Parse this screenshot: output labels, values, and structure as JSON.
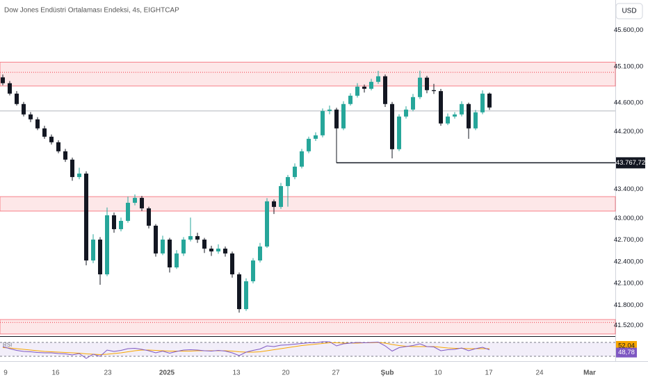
{
  "chart_data": {
    "type": "candlestick",
    "title": "Dow Jones Endüstri Ortalaması Endeksi, 4s, EIGHTCAP",
    "currency": "USD",
    "up_color": "#26a69a",
    "down_color": "#131722",
    "ylim": [
      41370,
      46020
    ],
    "yticks": [
      {
        "value": 45600,
        "label": "45.600,00"
      },
      {
        "value": 45100,
        "label": "45.100,00"
      },
      {
        "value": 44600,
        "label": "44.600,00"
      },
      {
        "value": 44200,
        "label": "44.200,00"
      },
      {
        "value": 43400,
        "label": "43.400,00"
      },
      {
        "value": 43000,
        "label": "43.000,00"
      },
      {
        "value": 42700,
        "label": "42.700,00"
      },
      {
        "value": 42400,
        "label": "42.400,00"
      },
      {
        "value": 42100,
        "label": "42.100,00"
      },
      {
        "value": 41800,
        "label": "41.800,00"
      },
      {
        "value": 41520,
        "label": "41.520,00"
      }
    ],
    "x_labels": [
      "9",
      "16",
      "23",
      "2025",
      "13",
      "20",
      "27",
      "Şub",
      "10",
      "17",
      "24",
      "Mar"
    ],
    "zones": [
      {
        "top": 45160,
        "bottom": 44830,
        "color": "#f23645"
      },
      {
        "top": 43300,
        "bottom": 43100,
        "color": "#f23645"
      },
      {
        "top": 41600,
        "bottom": 41400,
        "color": "#f23645"
      }
    ],
    "dotted_levels": [
      45020,
      41560
    ],
    "gray_level": 44485,
    "level": {
      "value": 43767.72,
      "label": "43.767,72",
      "start": 48
    },
    "ohlc": [
      [
        44950,
        44990,
        44840,
        44869
      ],
      [
        44869,
        44900,
        44700,
        44725
      ],
      [
        44725,
        44760,
        44560,
        44581
      ],
      [
        44581,
        44610,
        44410,
        44437
      ],
      [
        44437,
        44470,
        44330,
        44369
      ],
      [
        44369,
        44400,
        44220,
        44244
      ],
      [
        44244,
        44280,
        44100,
        44129
      ],
      [
        44129,
        44160,
        44020,
        44052
      ],
      [
        44052,
        44080,
        43900,
        43927
      ],
      [
        43927,
        43960,
        43780,
        43812
      ],
      [
        43812,
        43840,
        43520,
        43571
      ],
      [
        43571,
        43700,
        43540,
        43619
      ],
      [
        43619,
        43650,
        42350,
        42417
      ],
      [
        42417,
        42780,
        42380,
        42706
      ],
      [
        42706,
        42740,
        42081,
        42225
      ],
      [
        42225,
        43150,
        42200,
        43042
      ],
      [
        43042,
        43080,
        42800,
        42850
      ],
      [
        42850,
        43010,
        42820,
        42965
      ],
      [
        42965,
        43300,
        42940,
        43215
      ],
      [
        43215,
        43330,
        43180,
        43283
      ],
      [
        43283,
        43310,
        43100,
        43138
      ],
      [
        43138,
        43160,
        42860,
        42898
      ],
      [
        42898,
        42920,
        42470,
        42514
      ],
      [
        42514,
        42760,
        42490,
        42706
      ],
      [
        42706,
        42730,
        42250,
        42321
      ],
      [
        42321,
        42560,
        42300,
        42514
      ],
      [
        42514,
        42740,
        42480,
        42706
      ],
      [
        42706,
        43010,
        42680,
        42754
      ],
      [
        42754,
        42800,
        42660,
        42706
      ],
      [
        42706,
        42730,
        42520,
        42581
      ],
      [
        42581,
        42620,
        42480,
        42542
      ],
      [
        42542,
        42640,
        42510,
        42581
      ],
      [
        42581,
        42610,
        42470,
        42514
      ],
      [
        42514,
        42540,
        42180,
        42225
      ],
      [
        42225,
        42250,
        41696,
        41744
      ],
      [
        41744,
        42170,
        41720,
        42129
      ],
      [
        42129,
        42450,
        42100,
        42417
      ],
      [
        42417,
        42660,
        42390,
        42610
      ],
      [
        42610,
        43280,
        42590,
        43235
      ],
      [
        43235,
        43260,
        43060,
        43158
      ],
      [
        43158,
        43490,
        43130,
        43446
      ],
      [
        43446,
        43600,
        43160,
        43571
      ],
      [
        43571,
        43760,
        43540,
        43715
      ],
      [
        43715,
        43960,
        43690,
        43927
      ],
      [
        43927,
        44130,
        43900,
        44100
      ],
      [
        44100,
        44190,
        44070,
        44148
      ],
      [
        44148,
        44520,
        44120,
        44485
      ],
      [
        44485,
        44560,
        44440,
        44504
      ],
      [
        44504,
        44530,
        43767,
        44244
      ],
      [
        44244,
        44620,
        44220,
        44581
      ],
      [
        44581,
        44730,
        44560,
        44696
      ],
      [
        44696,
        44870,
        44670,
        44821
      ],
      [
        44821,
        44850,
        44740,
        44792
      ],
      [
        44792,
        44930,
        44770,
        44888
      ],
      [
        44888,
        45040,
        44860,
        44965
      ],
      [
        44965,
        44990,
        44540,
        44581
      ],
      [
        44581,
        44610,
        43830,
        43956
      ],
      [
        43956,
        44440,
        43930,
        44408
      ],
      [
        44408,
        44550,
        44380,
        44504
      ],
      [
        44504,
        44720,
        44480,
        44677
      ],
      [
        44677,
        45042,
        44650,
        44946
      ],
      [
        44946,
        44970,
        44730,
        44773
      ],
      [
        44773,
        44860,
        44720,
        44760
      ],
      [
        44760,
        44790,
        44280,
        44312
      ],
      [
        44312,
        44450,
        44290,
        44408
      ],
      [
        44408,
        44470,
        44380,
        44437
      ],
      [
        44437,
        44620,
        44410,
        44581
      ],
      [
        44581,
        44600,
        44100,
        44244
      ],
      [
        44244,
        44500,
        44220,
        44466
      ],
      [
        44466,
        44770,
        44440,
        44725
      ],
      [
        44725,
        44740,
        44500,
        44533
      ]
    ],
    "rsi": {
      "name": "RSI",
      "ylim": [
        20,
        80
      ],
      "bands": [
        70,
        30
      ],
      "color": "#7e57c2",
      "ma_color": "#f7a600",
      "values": [
        58,
        52,
        47,
        44,
        43,
        41,
        40,
        40,
        38,
        37,
        34,
        38,
        24,
        36,
        30,
        48,
        44,
        47,
        52,
        53,
        50,
        46,
        40,
        45,
        39,
        44,
        48,
        49,
        48,
        46,
        45,
        47,
        45,
        40,
        32,
        42,
        47,
        51,
        60,
        58,
        62,
        63,
        65,
        67,
        69,
        69,
        72,
        72,
        60,
        66,
        68,
        70,
        69,
        70,
        71,
        60,
        45,
        55,
        58,
        61,
        66,
        58,
        57,
        46,
        49,
        50,
        54,
        46,
        52,
        56,
        48.78
      ],
      "ma": [
        55,
        54,
        52,
        50,
        48,
        46,
        44,
        43,
        42,
        41,
        40,
        39,
        37,
        36,
        35,
        36,
        38,
        40,
        43,
        46,
        48,
        48,
        47,
        46,
        45,
        45,
        45,
        45,
        46,
        46,
        46,
        46,
        46,
        45,
        43,
        42,
        42,
        43,
        46,
        49,
        52,
        55,
        58,
        61,
        63,
        65,
        67,
        69,
        69,
        68,
        68,
        68,
        69,
        69,
        70,
        68,
        64,
        61,
        59,
        58,
        58,
        58,
        58,
        56,
        54,
        53,
        53,
        52,
        52,
        52,
        52.04
      ],
      "ma_label": {
        "value": 52.04,
        "label": "52,04"
      },
      "value_label": {
        "value": 48.78,
        "label": "48,78"
      }
    }
  }
}
